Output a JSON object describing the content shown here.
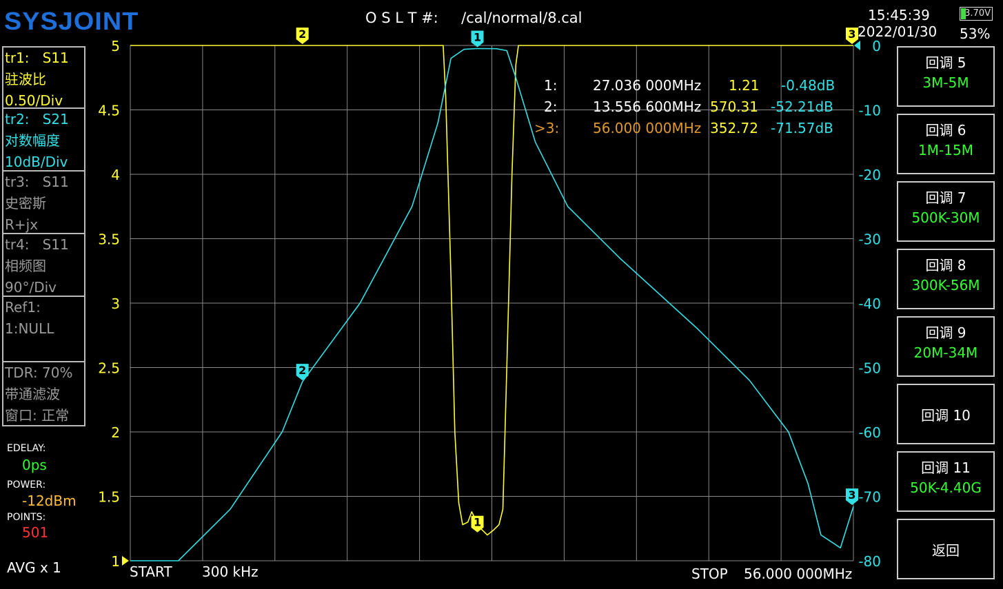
{
  "header": {
    "logo": "SYSJOINT",
    "cal_label": "O S L T #:",
    "cal_file": "/cal/normal/8.cal",
    "time": "15:45:39",
    "date": "2022/01/30",
    "battery_voltage": "3.70V",
    "battery_percent": "53%"
  },
  "traces": [
    {
      "id": "tr1:",
      "param": "S11",
      "format": "驻波比",
      "scale": "0.50/Div",
      "color": "#ffff33",
      "active": true
    },
    {
      "id": "tr2:",
      "param": "S21",
      "format": "对数幅度",
      "scale": "10dB/Div",
      "color": "#33e0e6",
      "active": true
    },
    {
      "id": "tr3:",
      "param": "S11",
      "format": "史密斯",
      "scale": "R+jx",
      "color": "#9a9a9a",
      "active": false
    },
    {
      "id": "tr4:",
      "param": "S11",
      "format": "相频图",
      "scale": "90°/Div",
      "color": "#9a9a9a",
      "active": false
    }
  ],
  "ref": {
    "label": "Ref1:",
    "value": "1:NULL",
    "color": "#9a9a9a"
  },
  "tdr": {
    "line1": "TDR: 70%",
    "line2": "带通滤波",
    "line3": "窗口: 正常",
    "color": "#9a9a9a"
  },
  "settings": {
    "edelay_label": "EDELAY:",
    "edelay_value": "0ps",
    "power_label": "POWER:",
    "power_value": "-12dBm",
    "points_label": "POINTS:",
    "points_value": "501",
    "avg": "AVG x 1"
  },
  "softkeys": [
    {
      "label": "回调 5",
      "sub": "3M-5M"
    },
    {
      "label": "回调 6",
      "sub": "1M-15M"
    },
    {
      "label": "回调 7",
      "sub": "500K-30M"
    },
    {
      "label": "回调 8",
      "sub": "300K-56M"
    },
    {
      "label": "回调 9",
      "sub": "20M-34M"
    },
    {
      "label": "回调 10",
      "sub": ""
    },
    {
      "label": "回调 11",
      "sub": "50K-4.40G"
    },
    {
      "label": "返回",
      "sub": ""
    }
  ],
  "markers": [
    {
      "id": "1:",
      "freq": "27.036 000MHz",
      "swr": "1.21",
      "db": "-0.48dB",
      "active": false
    },
    {
      "id": "2:",
      "freq": "13.556 600MHz",
      "swr": "570.31",
      "db": "-52.21dB",
      "active": false
    },
    {
      "id": ">3:",
      "freq": "56.000 000MHz",
      "swr": "352.72",
      "db": "-71.57dB",
      "active": true
    }
  ],
  "sweep": {
    "start_label": "START",
    "start_value": "300 kHz",
    "stop_label": "STOP",
    "stop_value": "56.000 000MHz"
  },
  "chart_data": {
    "type": "line",
    "x_unit": "MHz",
    "x_range": [
      0.3,
      56.0
    ],
    "left_axis": {
      "ticks": [
        "5",
        "4.5",
        "4",
        "3.5",
        "3",
        "2.5",
        "2",
        "1.5",
        "1"
      ],
      "range": [
        1,
        5
      ]
    },
    "right_axis": {
      "ticks": [
        "0",
        "-10",
        "-20",
        "-30",
        "-40",
        "-50",
        "-60",
        "-70",
        "-80"
      ],
      "range": [
        -80,
        0
      ]
    },
    "grid": true,
    "series": [
      {
        "trace": "tr1",
        "axis": "left",
        "color": "#ffff33",
        "points": [
          [
            0.3,
            5
          ],
          [
            24.4,
            5
          ],
          [
            24.6,
            4.6
          ],
          [
            25.0,
            3.2
          ],
          [
            25.3,
            2.0
          ],
          [
            25.6,
            1.45
          ],
          [
            25.9,
            1.28
          ],
          [
            26.3,
            1.3
          ],
          [
            26.6,
            1.38
          ],
          [
            27.0,
            1.3
          ],
          [
            27.3,
            1.25
          ],
          [
            27.8,
            1.2
          ],
          [
            28.3,
            1.24
          ],
          [
            28.7,
            1.28
          ],
          [
            29.0,
            1.4
          ],
          [
            29.3,
            2.5
          ],
          [
            29.7,
            4.0
          ],
          [
            30.0,
            4.85
          ],
          [
            30.2,
            5
          ],
          [
            56.0,
            5
          ]
        ]
      },
      {
        "trace": "tr2",
        "axis": "right",
        "color": "#33e0e6",
        "points": [
          [
            0.3,
            -80
          ],
          [
            4.0,
            -80
          ],
          [
            8.0,
            -72
          ],
          [
            12.0,
            -60
          ],
          [
            13.5566,
            -52.21
          ],
          [
            18.0,
            -40
          ],
          [
            22.0,
            -25
          ],
          [
            24.0,
            -12
          ],
          [
            25.0,
            -2
          ],
          [
            26.0,
            -0.6
          ],
          [
            27.0,
            -0.48
          ],
          [
            28.5,
            -0.5
          ],
          [
            29.3,
            -0.8
          ],
          [
            30.0,
            -5
          ],
          [
            31.5,
            -15
          ],
          [
            34.0,
            -25
          ],
          [
            38.0,
            -33
          ],
          [
            44.0,
            -44
          ],
          [
            48.0,
            -52
          ],
          [
            51.0,
            -60
          ],
          [
            52.5,
            -68
          ],
          [
            53.5,
            -76
          ],
          [
            55.0,
            -78
          ],
          [
            56.0,
            -71.57
          ]
        ]
      }
    ],
    "marker_points": [
      {
        "label": "2",
        "trace": "tr1",
        "x": 13.5566,
        "y": 5
      },
      {
        "label": "1",
        "trace": "tr1",
        "x": 27.036,
        "y": 1.21
      },
      {
        "label": "3",
        "trace": "tr1",
        "x": 56.0,
        "y": 5
      },
      {
        "label": "1",
        "trace": "tr2",
        "x": 27.036,
        "y": -0.48
      },
      {
        "label": "2",
        "trace": "tr2",
        "x": 13.5566,
        "y": -52.21
      },
      {
        "label": "3",
        "trace": "tr2",
        "x": 56.0,
        "y": -71.57
      }
    ]
  }
}
